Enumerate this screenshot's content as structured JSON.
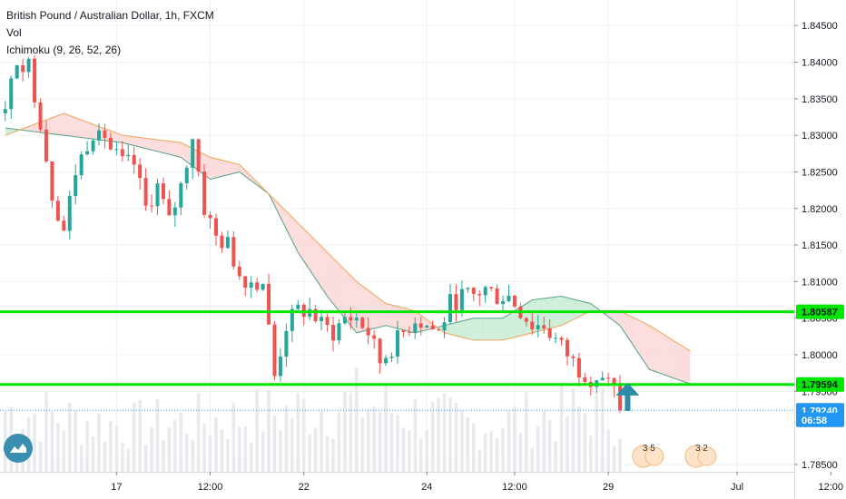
{
  "legend": {
    "title": "British Pound / Australian Dollar, 1h, FXCM",
    "vol": "Vol",
    "ichimoku": "Ichimoku (9, 26, 52, 26)"
  },
  "colors": {
    "up": "#26a69a",
    "down": "#ef5350",
    "hline": "#00e600",
    "leadA": "#5fa88c",
    "leadB": "#f0a860",
    "cloudUp": "#c8ecd4",
    "cloudDown": "#fbd7d7",
    "arrow": "#2c8da8",
    "grid": "#eef0f3",
    "vol": "#e9eaed"
  },
  "chart_data": {
    "type": "candlestick",
    "title": "British Pound / Australian Dollar, 1h, FXCM",
    "indicators": [
      "Vol",
      "Ichimoku (9, 26, 52, 26)"
    ],
    "y_ticks": [
      1.845,
      1.84,
      1.835,
      1.83,
      1.825,
      1.82,
      1.815,
      1.81,
      1.805,
      1.8,
      1.795,
      1.785
    ],
    "y_tick_labels": [
      "1.84500",
      "1.84000",
      "1.83500",
      "1.83000",
      "1.82500",
      "1.82000",
      "1.81500",
      "1.81000",
      "1.80500",
      "1.80000",
      "1.79500",
      "1.78500"
    ],
    "ylim": [
      1.784,
      1.8485
    ],
    "x_labels": [
      "17",
      "12:00",
      "22",
      "24",
      "12:00",
      "29",
      "Jul",
      "12:00"
    ],
    "x_label_bars": [
      19,
      35,
      51,
      72,
      87,
      103,
      125,
      141
    ],
    "bar_count": 148,
    "grid": true,
    "price_tags": [
      {
        "label": "1.80587",
        "value": 1.80587,
        "style": "green"
      },
      {
        "label": "1.79594",
        "value": 1.79594,
        "style": "green"
      },
      {
        "label": "1.79240",
        "value": 1.7924,
        "style": "blue"
      },
      {
        "label": "06:58",
        "value": 1.7911,
        "style": "blue"
      }
    ],
    "horizontal_lines": [
      1.80587,
      1.79594
    ],
    "current_price": 1.7924,
    "annotation": "up-arrow",
    "event_markers": [
      "3 5",
      "3 2"
    ],
    "close_path": [
      [
        0,
        1.833
      ],
      [
        2,
        1.8405
      ],
      [
        4,
        1.8395
      ],
      [
        6,
        1.832
      ],
      [
        8,
        1.822
      ],
      [
        10,
        1.817
      ],
      [
        12,
        1.825
      ],
      [
        14,
        1.829
      ],
      [
        16,
        1.832
      ],
      [
        18,
        1.828
      ],
      [
        20,
        1.826
      ],
      [
        22,
        1.826
      ],
      [
        24,
        1.82
      ],
      [
        26,
        1.823
      ],
      [
        28,
        1.818
      ],
      [
        30,
        1.823
      ],
      [
        32,
        1.83
      ],
      [
        34,
        1.82
      ],
      [
        36,
        1.816
      ],
      [
        38,
        1.815
      ],
      [
        40,
        1.811
      ],
      [
        42,
        1.81
      ],
      [
        44,
        1.81
      ],
      [
        46,
        1.797
      ],
      [
        48,
        1.804
      ],
      [
        50,
        1.806
      ],
      [
        52,
        1.806
      ],
      [
        54,
        1.804
      ],
      [
        56,
        1.803
      ],
      [
        58,
        1.805
      ],
      [
        60,
        1.805
      ],
      [
        62,
        1.803
      ],
      [
        64,
        1.799
      ],
      [
        66,
        1.801
      ],
      [
        68,
        1.803
      ],
      [
        70,
        1.805
      ],
      [
        72,
        1.804
      ],
      [
        74,
        1.803
      ],
      [
        76,
        1.807
      ],
      [
        78,
        1.808
      ],
      [
        80,
        1.808
      ],
      [
        82,
        1.809
      ],
      [
        84,
        1.808
      ],
      [
        86,
        1.808
      ],
      [
        88,
        1.806
      ],
      [
        90,
        1.804
      ],
      [
        92,
        1.804
      ],
      [
        94,
        1.802
      ],
      [
        96,
        1.8
      ],
      [
        98,
        1.798
      ],
      [
        100,
        1.797
      ],
      [
        102,
        1.797
      ],
      [
        104,
        1.795
      ],
      [
        105,
        1.7924
      ]
    ],
    "volume_profile": [
      [
        0,
        0.8
      ],
      [
        20,
        0.6
      ],
      [
        40,
        0.7
      ],
      [
        60,
        0.9
      ],
      [
        80,
        0.6
      ],
      [
        100,
        0.8
      ],
      [
        105,
        0.7
      ]
    ],
    "ichimoku_lead_a": [
      [
        0,
        1.831
      ],
      [
        10,
        1.83
      ],
      [
        20,
        1.829
      ],
      [
        30,
        1.827
      ],
      [
        35,
        1.824
      ],
      [
        40,
        1.825
      ],
      [
        45,
        1.822
      ],
      [
        50,
        1.814
      ],
      [
        55,
        1.808
      ],
      [
        60,
        1.803
      ],
      [
        65,
        1.804
      ],
      [
        70,
        1.803
      ],
      [
        75,
        1.804
      ],
      [
        80,
        1.805
      ],
      [
        85,
        1.805
      ],
      [
        90,
        1.8075
      ],
      [
        95,
        1.808
      ],
      [
        100,
        1.807
      ],
      [
        105,
        1.804
      ],
      [
        110,
        1.798
      ],
      [
        117,
        1.796
      ]
    ],
    "ichimoku_lead_b": [
      [
        0,
        1.83
      ],
      [
        10,
        1.833
      ],
      [
        20,
        1.83
      ],
      [
        30,
        1.829
      ],
      [
        35,
        1.827
      ],
      [
        40,
        1.826
      ],
      [
        45,
        1.822
      ],
      [
        50,
        1.818
      ],
      [
        55,
        1.814
      ],
      [
        60,
        1.81
      ],
      [
        65,
        1.807
      ],
      [
        70,
        1.806
      ],
      [
        75,
        1.803
      ],
      [
        80,
        1.802
      ],
      [
        85,
        1.802
      ],
      [
        90,
        1.803
      ],
      [
        95,
        1.804
      ],
      [
        100,
        1.806
      ],
      [
        105,
        1.806
      ],
      [
        110,
        1.804
      ],
      [
        117,
        1.8005
      ]
    ]
  }
}
